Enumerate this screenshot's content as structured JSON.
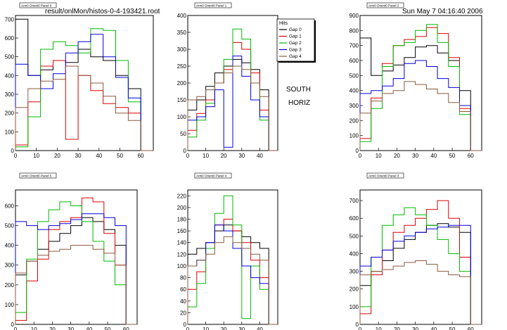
{
  "header": {
    "file_title": "result/onlMon/histos-0-4-193421.root",
    "timestamp": "Sun May  7 04:16:40 2006"
  },
  "annotation": {
    "line1": "SOUTH",
    "line2": "HORIZ"
  },
  "legend": {
    "title": "Hits",
    "entries": [
      {
        "label": "Gap 0",
        "color": "#000000"
      },
      {
        "label": "Gap 1",
        "color": "#dd0000"
      },
      {
        "label": "Gap 2",
        "color": "#00bb00"
      },
      {
        "label": "Gap 3",
        "color": "#0000dd"
      },
      {
        "label": "Gap 4",
        "color": "#8b5a3c"
      }
    ]
  },
  "chart_data": [
    {
      "type": "line",
      "title": "Arm0 Orient0 Panel 0",
      "xlim": [
        0,
        66
      ],
      "ylim": [
        0,
        720
      ],
      "xticks": [
        0,
        10,
        20,
        30,
        40,
        50,
        60
      ],
      "yticks": [
        0,
        100,
        200,
        300,
        400,
        500,
        600,
        700
      ],
      "x_bins": [
        0,
        6,
        12,
        18,
        24,
        30,
        36,
        42,
        48,
        54,
        60
      ],
      "series": [
        {
          "name": "Gap 0",
          "values": [
            700,
            400,
            430,
            480,
            470,
            540,
            500,
            480,
            400,
            330,
            0
          ]
        },
        {
          "name": "Gap 1",
          "values": [
            30,
            260,
            450,
            480,
            60,
            400,
            320,
            250,
            230,
            200,
            0
          ]
        },
        {
          "name": "Gap 2",
          "values": [
            20,
            180,
            540,
            580,
            560,
            520,
            650,
            640,
            480,
            260,
            0
          ]
        },
        {
          "name": "Gap 3",
          "values": [
            460,
            400,
            330,
            410,
            520,
            580,
            620,
            500,
            390,
            280,
            0
          ]
        },
        {
          "name": "Gap 4",
          "values": [
            230,
            330,
            370,
            380,
            450,
            400,
            360,
            290,
            200,
            160,
            0
          ]
        }
      ]
    },
    {
      "type": "line",
      "title": "Arm0 Orient0 Panel 1",
      "xlim": [
        0,
        50
      ],
      "ylim": [
        0,
        400
      ],
      "xticks": [
        0,
        10,
        20,
        30,
        40
      ],
      "yticks": [
        0,
        50,
        100,
        150,
        200,
        250,
        300,
        350,
        400
      ],
      "x_bins": [
        0,
        5,
        10,
        15,
        20,
        25,
        30,
        35,
        40,
        45
      ],
      "series": [
        {
          "name": "Gap 0",
          "values": [
            120,
            150,
            190,
            230,
            250,
            270,
            260,
            240,
            180,
            0
          ]
        },
        {
          "name": "Gap 1",
          "values": [
            60,
            110,
            150,
            200,
            240,
            320,
            300,
            230,
            120,
            0
          ]
        },
        {
          "name": "Gap 2",
          "values": [
            40,
            90,
            140,
            200,
            270,
            360,
            330,
            200,
            90,
            0
          ]
        },
        {
          "name": "Gap 3",
          "values": [
            90,
            100,
            130,
            180,
            10,
            280,
            220,
            150,
            100,
            0
          ]
        },
        {
          "name": "Gap 4",
          "values": [
            150,
            160,
            180,
            200,
            230,
            250,
            240,
            200,
            160,
            0
          ]
        }
      ]
    },
    {
      "type": "line",
      "title": "Arm0 Orient0 Panel 2",
      "xlim": [
        0,
        66
      ],
      "ylim": [
        0,
        900
      ],
      "xticks": [
        0,
        10,
        20,
        30,
        40,
        50,
        60
      ],
      "yticks": [
        0,
        100,
        200,
        300,
        400,
        500,
        600,
        700,
        800,
        900
      ],
      "x_bins": [
        0,
        6,
        12,
        18,
        24,
        30,
        36,
        42,
        48,
        54,
        60
      ],
      "series": [
        {
          "name": "Gap 0",
          "values": [
            750,
            500,
            530,
            570,
            620,
            690,
            700,
            650,
            600,
            400,
            0
          ]
        },
        {
          "name": "Gap 1",
          "values": [
            80,
            350,
            580,
            700,
            740,
            760,
            820,
            780,
            620,
            280,
            0
          ]
        },
        {
          "name": "Gap 2",
          "values": [
            60,
            280,
            560,
            700,
            720,
            800,
            840,
            720,
            560,
            240,
            0
          ]
        },
        {
          "name": "Gap 3",
          "values": [
            380,
            400,
            430,
            480,
            580,
            600,
            560,
            480,
            420,
            300,
            0
          ]
        },
        {
          "name": "Gap 4",
          "values": [
            250,
            330,
            380,
            400,
            460,
            440,
            410,
            380,
            320,
            260,
            0
          ]
        }
      ]
    },
    {
      "type": "line",
      "title": "Arm0 Orient0 Panel 5",
      "xlim": [
        0,
        66
      ],
      "ylim": [
        0,
        680
      ],
      "xticks": [
        0,
        10,
        20,
        30,
        40,
        50,
        60
      ],
      "yticks": [
        0,
        100,
        200,
        300,
        400,
        500,
        600
      ],
      "x_bins": [
        0,
        6,
        12,
        18,
        24,
        30,
        36,
        42,
        48,
        54,
        60
      ],
      "series": [
        {
          "name": "Gap 0",
          "values": [
            250,
            320,
            380,
            420,
            460,
            500,
            540,
            520,
            480,
            400,
            0
          ]
        },
        {
          "name": "Gap 1",
          "values": [
            20,
            220,
            330,
            480,
            520,
            540,
            640,
            620,
            460,
            300,
            0
          ]
        },
        {
          "name": "Gap 2",
          "values": [
            60,
            330,
            520,
            580,
            620,
            600,
            520,
            420,
            320,
            200,
            0
          ]
        },
        {
          "name": "Gap 3",
          "values": [
            520,
            500,
            480,
            500,
            510,
            530,
            560,
            560,
            540,
            500,
            0
          ]
        },
        {
          "name": "Gap 4",
          "values": [
            260,
            320,
            350,
            370,
            380,
            400,
            400,
            380,
            360,
            300,
            0
          ]
        }
      ]
    },
    {
      "type": "line",
      "title": "Arm0 Orient0 Panel 4",
      "xlim": [
        0,
        50
      ],
      "ylim": [
        0,
        230
      ],
      "xticks": [
        0,
        10,
        20,
        30,
        40
      ],
      "yticks": [
        0,
        20,
        40,
        60,
        80,
        100,
        120,
        140,
        160,
        180,
        200,
        220
      ],
      "x_bins": [
        0,
        5,
        10,
        15,
        20,
        25,
        30,
        35,
        40,
        45
      ],
      "series": [
        {
          "name": "Gap 0",
          "values": [
            120,
            130,
            140,
            160,
            170,
            160,
            150,
            140,
            130,
            0
          ]
        },
        {
          "name": "Gap 1",
          "values": [
            60,
            90,
            130,
            170,
            180,
            160,
            140,
            110,
            80,
            0
          ]
        },
        {
          "name": "Gap 2",
          "values": [
            30,
            70,
            130,
            190,
            220,
            170,
            10,
            100,
            60,
            0
          ]
        },
        {
          "name": "Gap 3",
          "values": [
            100,
            110,
            140,
            170,
            160,
            130,
            100,
            80,
            70,
            0
          ]
        },
        {
          "name": "Gap 4",
          "values": [
            100,
            110,
            120,
            140,
            150,
            140,
            130,
            120,
            110,
            0
          ]
        }
      ]
    },
    {
      "type": "line",
      "title": "Arm0 Orient0 Panel 3",
      "xlim": [
        0,
        66
      ],
      "ylim": [
        0,
        760
      ],
      "xticks": [
        0,
        10,
        20,
        30,
        40,
        50,
        60
      ],
      "yticks": [
        0,
        100,
        200,
        300,
        400,
        500,
        600,
        700
      ],
      "x_bins": [
        0,
        6,
        12,
        18,
        24,
        30,
        36,
        42,
        48,
        54,
        60
      ],
      "series": [
        {
          "name": "Gap 0",
          "values": [
            220,
            300,
            360,
            430,
            480,
            520,
            560,
            570,
            550,
            520,
            0
          ]
        },
        {
          "name": "Gap 1",
          "values": [
            60,
            280,
            420,
            520,
            560,
            600,
            650,
            700,
            600,
            380,
            0
          ]
        },
        {
          "name": "Gap 2",
          "values": [
            100,
            380,
            560,
            620,
            660,
            620,
            560,
            480,
            400,
            300,
            0
          ]
        },
        {
          "name": "Gap 3",
          "values": [
            330,
            380,
            420,
            470,
            500,
            520,
            540,
            550,
            560,
            560,
            0
          ]
        },
        {
          "name": "Gap 4",
          "values": [
            280,
            300,
            310,
            330,
            350,
            360,
            340,
            300,
            280,
            270,
            0
          ]
        }
      ]
    }
  ]
}
